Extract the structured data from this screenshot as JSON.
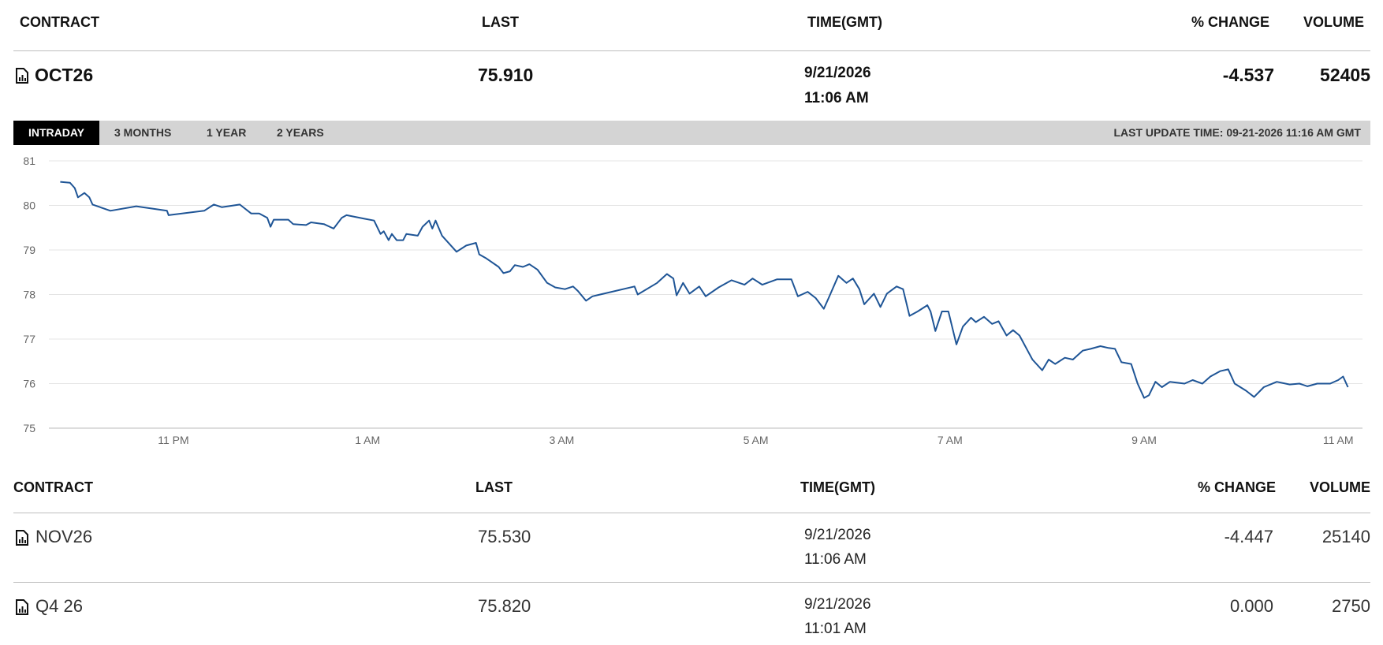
{
  "header": {
    "columns": [
      "CONTRACT",
      "LAST",
      "TIME(GMT)",
      "% CHANGE",
      "VOLUME"
    ]
  },
  "selected_contract": {
    "contract": "OCT26",
    "last": "75.910",
    "date": "9/21/2026",
    "time": "11:06 AM",
    "change": "-4.537",
    "volume": "52405"
  },
  "tabs": [
    "INTRADAY",
    "3 MONTHS",
    "1 YEAR",
    "2 YEARS"
  ],
  "last_update": "LAST UPDATE TIME: 09-21-2026 11:16 AM GMT",
  "chart_data": {
    "type": "line",
    "color": "#1f5596",
    "grid": true,
    "xlim": [
      "21:43",
      "11:15"
    ],
    "xticks": [
      {
        "value": "23:00",
        "label": "11 PM"
      },
      {
        "value": "01:00",
        "label": "1 AM"
      },
      {
        "value": "03:00",
        "label": "3 AM"
      },
      {
        "value": "05:00",
        "label": "5 AM"
      },
      {
        "value": "07:00",
        "label": "7 AM"
      },
      {
        "value": "09:00",
        "label": "9 AM"
      },
      {
        "value": "11:00",
        "label": "11 AM"
      }
    ],
    "ylim": [
      75,
      81
    ],
    "yticks": [
      75,
      76,
      77,
      78,
      79,
      80,
      81
    ],
    "x": [
      "21:50",
      "21:56",
      "21:59",
      "22:01",
      "22:05",
      "22:08",
      "22:10",
      "22:21",
      "22:37",
      "22:56",
      "22:57",
      "23:19",
      "23:25",
      "23:30",
      "23:41",
      "23:48",
      "23:53",
      "23:58",
      "00:00",
      "00:02",
      "00:11",
      "00:14",
      "00:22",
      "00:25",
      "00:33",
      "00:39",
      "00:44",
      "00:47",
      "00:58",
      "01:04",
      "01:08",
      "01:10",
      "01:13",
      "01:15",
      "01:18",
      "01:22",
      "01:24",
      "01:31",
      "01:34",
      "01:38",
      "01:40",
      "01:42",
      "01:46",
      "01:55",
      "02:01",
      "02:07",
      "02:09",
      "02:13",
      "02:21",
      "02:24",
      "02:28",
      "02:31",
      "02:36",
      "02:40",
      "02:45",
      "02:51",
      "02:56",
      "03:02",
      "03:07",
      "03:10",
      "03:15",
      "03:19",
      "03:45",
      "03:47",
      "03:59",
      "04:05",
      "04:09",
      "04:11",
      "04:15",
      "04:19",
      "04:25",
      "04:29",
      "04:37",
      "04:42",
      "04:45",
      "04:53",
      "04:58",
      "05:04",
      "05:13",
      "05:22",
      "05:26",
      "05:32",
      "05:37",
      "05:42",
      "05:45",
      "05:51",
      "05:56",
      "06:00",
      "06:04",
      "06:07",
      "06:13",
      "06:17",
      "06:21",
      "06:27",
      "06:31",
      "06:35",
      "06:40",
      "06:46",
      "06:48",
      "06:51",
      "06:55",
      "06:59",
      "07:04",
      "07:08",
      "07:13",
      "07:16",
      "07:21",
      "07:26",
      "07:30",
      "07:35",
      "07:39",
      "07:43",
      "07:48",
      "07:51",
      "07:57",
      "08:01",
      "08:05",
      "08:11",
      "08:16",
      "08:22",
      "08:27",
      "08:33",
      "08:38",
      "08:42",
      "08:46",
      "08:52",
      "08:56",
      "09:00",
      "09:03",
      "09:07",
      "09:11",
      "09:16",
      "09:25",
      "09:30",
      "09:36",
      "09:41",
      "09:47",
      "09:52",
      "09:56",
      "10:03",
      "10:08",
      "10:14",
      "10:22",
      "10:30",
      "10:36",
      "10:41",
      "10:47",
      "10:55",
      "11:00",
      "11:03",
      "11:06"
    ],
    "values": [
      80.53,
      80.51,
      80.39,
      80.18,
      80.28,
      80.18,
      80.02,
      79.88,
      79.98,
      79.88,
      79.78,
      79.88,
      80.02,
      79.96,
      80.02,
      79.82,
      79.82,
      79.72,
      79.52,
      79.68,
      79.68,
      79.58,
      79.56,
      79.62,
      79.58,
      79.48,
      79.72,
      79.78,
      79.7,
      79.66,
      79.36,
      79.42,
      79.22,
      79.36,
      79.22,
      79.22,
      79.36,
      79.32,
      79.52,
      79.66,
      79.48,
      79.66,
      79.32,
      78.96,
      79.1,
      79.16,
      78.9,
      78.82,
      78.62,
      78.48,
      78.52,
      78.66,
      78.62,
      78.68,
      78.56,
      78.26,
      78.16,
      78.12,
      78.18,
      78.08,
      77.86,
      77.96,
      78.18,
      78.0,
      78.26,
      78.46,
      78.36,
      77.98,
      78.26,
      78.02,
      78.18,
      77.96,
      78.16,
      78.26,
      78.32,
      78.22,
      78.36,
      78.22,
      78.34,
      78.34,
      77.96,
      78.06,
      77.92,
      77.68,
      77.92,
      78.42,
      78.26,
      78.36,
      78.12,
      77.78,
      78.02,
      77.72,
      78.02,
      78.18,
      78.12,
      77.52,
      77.62,
      77.76,
      77.62,
      77.18,
      77.62,
      77.62,
      76.88,
      77.28,
      77.48,
      77.38,
      77.5,
      77.34,
      77.4,
      77.08,
      77.2,
      77.08,
      76.74,
      76.54,
      76.3,
      76.54,
      76.44,
      76.58,
      76.54,
      76.74,
      76.78,
      76.84,
      76.8,
      76.78,
      76.48,
      76.44,
      76.0,
      75.68,
      75.74,
      76.04,
      75.92,
      76.04,
      76.0,
      76.08,
      76.0,
      76.16,
      76.28,
      76.32,
      76.0,
      75.84,
      75.7,
      75.92,
      76.04,
      75.98,
      76.0,
      75.94,
      76.0,
      76.0,
      76.08,
      76.16,
      75.92
    ]
  },
  "other_contracts": {
    "columns": [
      "CONTRACT",
      "LAST",
      "TIME(GMT)",
      "% CHANGE",
      "VOLUME"
    ],
    "rows": [
      {
        "contract": "NOV26",
        "last": "75.530",
        "date": "9/21/2026",
        "time": "11:06 AM",
        "change": "-4.447",
        "volume": "25140"
      },
      {
        "contract": "Q4 26",
        "last": "75.820",
        "date": "9/21/2026",
        "time": "11:01 AM",
        "change": "0.000",
        "volume": "2750"
      }
    ]
  }
}
